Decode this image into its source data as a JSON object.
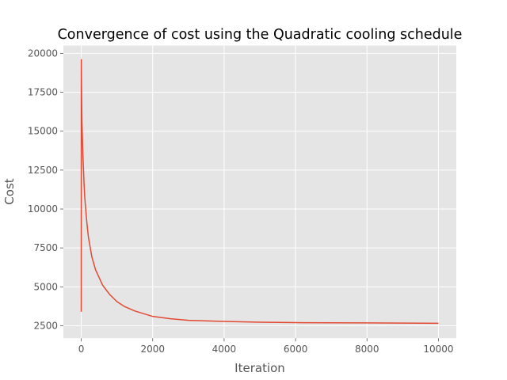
{
  "chart_data": {
    "type": "line",
    "title": "Convergence of cost using the Quadratic cooling schedule",
    "xlabel": "Iteration",
    "ylabel": "Cost",
    "xlim": [
      -500,
      10500
    ],
    "ylim": [
      1700,
      20500
    ],
    "xticks": [
      0,
      2000,
      4000,
      6000,
      8000,
      10000
    ],
    "xtick_labels": [
      "0",
      "2000",
      "4000",
      "6000",
      "8000",
      "10000"
    ],
    "yticks": [
      2500,
      5000,
      7500,
      10000,
      12500,
      15000,
      17500,
      20000
    ],
    "ytick_labels": [
      "2500",
      "5000",
      "7500",
      "10000",
      "12500",
      "15000",
      "17500",
      "20000"
    ],
    "grid": true,
    "series": [
      {
        "color": "#e24a33",
        "x": [
          0,
          2,
          5,
          10,
          20,
          40,
          60,
          80,
          100,
          150,
          200,
          300,
          400,
          500,
          600,
          800,
          1000,
          1200,
          1500,
          2000,
          2500,
          3000,
          4000,
          5000,
          6000,
          7000,
          8000,
          9000,
          10000
        ],
        "y": [
          3400,
          19600,
          18600,
          17300,
          15600,
          13900,
          12700,
          11600,
          10700,
          9300,
          8200,
          6900,
          6100,
          5600,
          5100,
          4500,
          4050,
          3750,
          3450,
          3100,
          2950,
          2850,
          2780,
          2730,
          2700,
          2690,
          2680,
          2670,
          2660
        ]
      }
    ]
  }
}
